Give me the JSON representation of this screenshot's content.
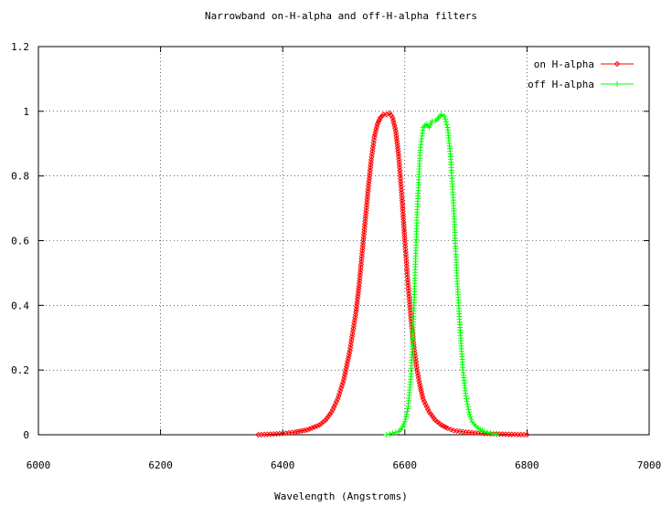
{
  "chart_data": {
    "type": "line",
    "title": "Narrowband on-H-alpha and off-H-alpha filters",
    "xlabel": "Wavelength (Angstroms)",
    "ylabel": "",
    "xlim": [
      6000,
      7000
    ],
    "ylim": [
      0,
      1.2
    ],
    "xticks": [
      "6000",
      "6200",
      "6400",
      "6600",
      "6800",
      "7000"
    ],
    "yticks": [
      "0",
      "0.2",
      "0.4",
      "0.6",
      "0.8",
      "1",
      "1.2"
    ],
    "grid": true,
    "legend_position": "top-right",
    "series": [
      {
        "name": "on H-alpha",
        "color": "#ff0000",
        "marker": "diamond",
        "x": [
          6360,
          6380,
          6400,
          6420,
          6440,
          6460,
          6470,
          6480,
          6490,
          6500,
          6510,
          6520,
          6525,
          6530,
          6535,
          6540,
          6545,
          6550,
          6555,
          6560,
          6565,
          6570,
          6575,
          6580,
          6585,
          6590,
          6595,
          6600,
          6605,
          6610,
          6615,
          6620,
          6625,
          6630,
          6640,
          6650,
          6660,
          6670,
          6680,
          6700,
          6720,
          6740,
          6760,
          6780,
          6800
        ],
        "y": [
          0.0,
          0.002,
          0.004,
          0.008,
          0.015,
          0.03,
          0.045,
          0.07,
          0.11,
          0.17,
          0.26,
          0.38,
          0.46,
          0.56,
          0.66,
          0.76,
          0.85,
          0.92,
          0.96,
          0.98,
          0.99,
          0.99,
          0.995,
          0.98,
          0.94,
          0.86,
          0.74,
          0.6,
          0.47,
          0.36,
          0.27,
          0.2,
          0.15,
          0.11,
          0.07,
          0.045,
          0.03,
          0.02,
          0.013,
          0.008,
          0.005,
          0.003,
          0.002,
          0.001,
          0.0
        ]
      },
      {
        "name": "off H-alpha",
        "color": "#00ff00",
        "marker": "plus",
        "x": [
          6570,
          6580,
          6590,
          6595,
          6600,
          6605,
          6610,
          6615,
          6620,
          6625,
          6630,
          6635,
          6640,
          6645,
          6650,
          6655,
          6660,
          6665,
          6670,
          6675,
          6680,
          6685,
          6690,
          6695,
          6700,
          6705,
          6710,
          6720,
          6730,
          6740,
          6750
        ],
        "y": [
          0.0,
          0.005,
          0.01,
          0.02,
          0.04,
          0.08,
          0.18,
          0.4,
          0.68,
          0.88,
          0.95,
          0.96,
          0.95,
          0.97,
          0.97,
          0.98,
          0.99,
          0.985,
          0.95,
          0.86,
          0.7,
          0.5,
          0.34,
          0.2,
          0.12,
          0.07,
          0.04,
          0.02,
          0.01,
          0.005,
          0.0
        ]
      }
    ]
  }
}
